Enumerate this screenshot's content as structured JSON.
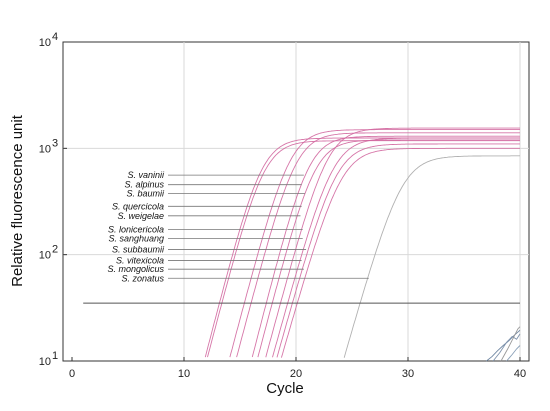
{
  "chart_data": {
    "type": "line",
    "title": "",
    "xlabel": "Cycle",
    "ylabel": "Relative fluorescence unit",
    "xlim": [
      0,
      40
    ],
    "ylim": [
      10,
      10000
    ],
    "y_scale": "log",
    "x_ticks": [
      0,
      10,
      20,
      30,
      40
    ],
    "y_ticks": [
      {
        "value": 10,
        "base": "10",
        "exp": "1"
      },
      {
        "value": 100,
        "base": "10",
        "exp": "2"
      },
      {
        "value": 1000,
        "base": "10",
        "exp": "3"
      },
      {
        "value": 10000,
        "base": "10",
        "exp": "4"
      }
    ],
    "grid": true,
    "threshold": {
      "value": 35,
      "x_range": [
        1,
        40
      ],
      "color": "#555555"
    },
    "colors": {
      "pink": "#d1679f",
      "gray": "#a9a9a9",
      "threshold": "#555555",
      "negative": "#6f87a3"
    },
    "species_labels": [
      {
        "label": "S. vaninii",
        "y": 560,
        "x_end": 20.7
      },
      {
        "label": "S. alpinus",
        "y": 455,
        "x_end": 20.5
      },
      {
        "label": "S. baumii",
        "y": 375,
        "x_end": 20.8
      },
      {
        "label": "S. quercicola",
        "y": 285,
        "x_end": 20.5
      },
      {
        "label": "S. weigelae",
        "y": 232,
        "x_end": 20.4
      },
      {
        "label": "S. lonicericola",
        "y": 173,
        "x_end": 20.6
      },
      {
        "label": "S. sanghuang",
        "y": 142,
        "x_end": 20.6
      },
      {
        "label": "S. subbaumii",
        "y": 112,
        "x_end": 20.9
      },
      {
        "label": "S. vitexicola",
        "y": 88,
        "x_end": 20.5
      },
      {
        "label": "S. mongolicus",
        "y": 73,
        "x_end": 20.7
      },
      {
        "label": "S. zonatus",
        "y": 60,
        "x_end": 26.5
      }
    ],
    "series": [
      {
        "color": "#d1679f",
        "cross_x": 11.8,
        "k": 0.94,
        "plateau": 1250
      },
      {
        "color": "#d1679f",
        "cross_x": 12.0,
        "k": 0.93,
        "plateau": 1180
      },
      {
        "color": "#d1679f",
        "cross_x": 14.0,
        "k": 0.92,
        "plateau": 1500
      },
      {
        "color": "#d1679f",
        "cross_x": 14.6,
        "k": 0.92,
        "plateau": 1400
      },
      {
        "color": "#d1679f",
        "cross_x": 16.0,
        "k": 0.95,
        "plateau": 1300
      },
      {
        "color": "#d1679f",
        "cross_x": 16.5,
        "k": 0.93,
        "plateau": 1200
      },
      {
        "color": "#d1679f",
        "cross_x": 17.2,
        "k": 0.9,
        "plateau": 1550
      },
      {
        "color": "#d1679f",
        "cross_x": 17.8,
        "k": 0.88,
        "plateau": 1250
      },
      {
        "color": "#d1679f",
        "cross_x": 18.2,
        "k": 0.87,
        "plateau": 1100
      },
      {
        "color": "#d1679f",
        "cross_x": 18.6,
        "k": 0.85,
        "plateau": 1000
      },
      {
        "color": "#a9a9a9",
        "cross_x": 24.2,
        "k": 0.85,
        "plateau": 850
      }
    ],
    "negative_series": [
      {
        "color": "#6f87a3",
        "x": [
          37.0,
          37.5,
          38.0,
          38.5,
          39.0,
          39.5,
          40.0
        ],
        "y": [
          10,
          11.0,
          12.5,
          14.0,
          15.5,
          17.5,
          19.5
        ]
      },
      {
        "color": "#7f93ad",
        "x": [
          37.6,
          38.2,
          38.8,
          39.3,
          39.7,
          40.0
        ],
        "y": [
          10,
          12.0,
          15.0,
          17.0,
          16.0,
          18.0
        ]
      },
      {
        "color": "#999999",
        "x": [
          38.3,
          38.9,
          39.4,
          39.8,
          40.0
        ],
        "y": [
          10,
          13.0,
          16.5,
          20.0,
          21.0
        ]
      },
      {
        "color": "#8aa0b8",
        "x": [
          38.8,
          39.3,
          39.7,
          40.0
        ],
        "y": [
          10,
          11.5,
          13.0,
          14.0
        ]
      }
    ]
  }
}
